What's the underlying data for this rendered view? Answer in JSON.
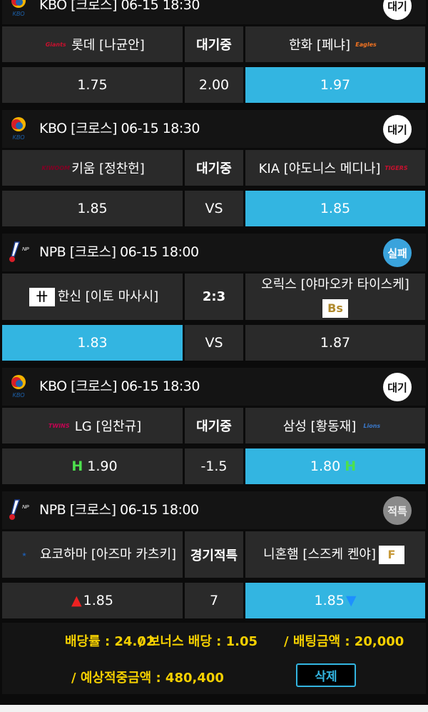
{
  "colors": {
    "selected": "#33b5e1",
    "highlight": "#f5d000",
    "handicap": "#4de04d",
    "up": "#e22222",
    "down": "#1e90ff"
  },
  "games": [
    {
      "league": "KBO",
      "header": "KBO  [크로스]  06-15 18:30",
      "status": "대기",
      "status_style": "white",
      "home": {
        "name": "롯데 [나균안]",
        "logo": "Giants",
        "logo_color": "#c8102e"
      },
      "middle_label": "대기중",
      "away": {
        "name": "한화 [페냐]",
        "logo": "Eagles",
        "logo_color": "#f37321"
      },
      "odds": {
        "home": "1.75",
        "middle": "2.00",
        "away": "1.97"
      },
      "selected": "away"
    },
    {
      "league": "KBO",
      "header": "KBO  [크로스]  06-15 18:30",
      "status": "대기",
      "status_style": "white",
      "home": {
        "name": "키움 [정찬헌]",
        "logo": "KIWOOM",
        "logo_color": "#820024"
      },
      "middle_label": "대기중",
      "away": {
        "name": "KIA [야도니스 메디나]",
        "logo": "TIGERS",
        "logo_color": "#c8102e"
      },
      "odds": {
        "home": "1.85",
        "middle": "VS",
        "away": "1.85"
      },
      "selected": "away"
    },
    {
      "league": "NPB",
      "header": "NPB  [크로스]  06-15 18:00",
      "status": "실패",
      "status_style": "blue",
      "home": {
        "name": "한신 [이토 마사시]",
        "logo": "卄",
        "logo_color": "#000000"
      },
      "middle_label": "2:3",
      "away": {
        "name": "오릭스 [야마오카 타이스케]",
        "logo": "Bs",
        "logo_color": "#b08a2e"
      },
      "odds": {
        "home": "1.83",
        "middle": "VS",
        "away": "1.87"
      },
      "selected": "home",
      "tall": true
    },
    {
      "league": "KBO",
      "header": "KBO  [크로스]  06-15 18:30",
      "status": "대기",
      "status_style": "white",
      "home": {
        "name": "LG [임찬규]",
        "logo": "TWINS",
        "logo_color": "#c30452"
      },
      "middle_label": "대기중",
      "away": {
        "name": "삼성 [황동재]",
        "logo": "Lions",
        "logo_color": "#3a78c9"
      },
      "odds": {
        "home": "1.90",
        "middle": "-1.5",
        "away": "1.80",
        "home_mark": "H",
        "away_mark": "H"
      },
      "selected": "away"
    },
    {
      "league": "NPB",
      "header": "NPB  [크로스]  06-15 18:00",
      "status": "적특",
      "status_style": "gray",
      "home": {
        "name": "요코하마 [아즈마 카츠키]",
        "logo": "★",
        "logo_color": "#1e5aa8"
      },
      "middle_label": "경기적특",
      "away": {
        "name": "니혼햄 [스즈케 켄야]",
        "logo": "F",
        "logo_color": "#c89b3c"
      },
      "odds": {
        "home": "1.85",
        "middle": "7",
        "away": "1.85",
        "home_arrow": "up",
        "away_arrow": "down"
      },
      "selected": "away",
      "tall": true
    }
  ],
  "footer": {
    "odds_rate": "배당률 : 24.02",
    "bonus": "/ 보너스 배당 : 1.05",
    "bet_amount": "/ 배팅금액 : 20,000",
    "expected": "/ 예상적중금액 : 480,400",
    "delete_label": "삭제"
  }
}
